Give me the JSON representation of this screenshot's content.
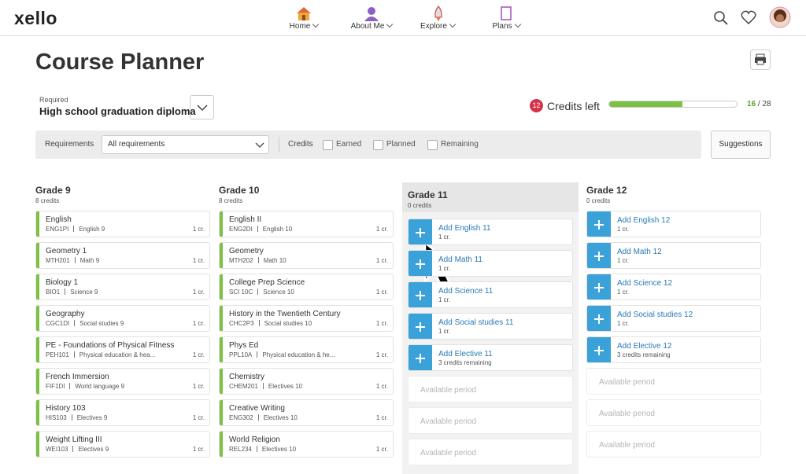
{
  "header": {
    "logo": "xello",
    "nav": [
      {
        "label": "Home"
      },
      {
        "label": "About Me"
      },
      {
        "label": "Explore"
      },
      {
        "label": "Plans"
      }
    ]
  },
  "page": {
    "title": "Course Planner",
    "required_label": "Required",
    "diploma": "High school graduation diploma",
    "credits_left_count": 12,
    "credits_left_text": "Credits left",
    "progress_earned": 16,
    "progress_separator": "/",
    "progress_total": 28
  },
  "filters": {
    "requirements_label": "Requirements",
    "requirements_value": "All requirements",
    "credits_label": "Credits",
    "checkboxes": [
      "Earned",
      "Planned",
      "Remaining"
    ],
    "suggestions": "Suggestions"
  },
  "grades": [
    {
      "name": "Grade 9",
      "credits": "8 credits",
      "courses": [
        {
          "name": "English",
          "code": "ENG1PI",
          "category": "English 9",
          "cr": "1 cr."
        },
        {
          "name": "Geometry 1",
          "code": "MTH201",
          "category": "Math 9",
          "cr": "1 cr."
        },
        {
          "name": "Biology 1",
          "code": "BIO1",
          "category": "Science 9",
          "cr": "1 cr."
        },
        {
          "name": "Geography",
          "code": "CGC1DI",
          "category": "Social studies 9",
          "cr": "1 cr."
        },
        {
          "name": "PE - Foundations of Physical Fitness",
          "code": "PEH101",
          "category": "Physical education & hea...",
          "cr": "1 cr."
        },
        {
          "name": "French Immersion",
          "code": "FIF1DI",
          "category": "World language 9",
          "cr": "1 cr."
        },
        {
          "name": "History 103",
          "code": "HIS103",
          "category": "Electives 9",
          "cr": "1 cr."
        },
        {
          "name": "Weight Lifting III",
          "code": "WEI103",
          "category": "Electives 9",
          "cr": "1 cr."
        }
      ]
    },
    {
      "name": "Grade 10",
      "credits": "8 credits",
      "courses": [
        {
          "name": "English II",
          "code": "ENG2DI",
          "category": "English 10",
          "cr": "1 cr."
        },
        {
          "name": "Geometry",
          "code": "MTH202",
          "category": "Math 10",
          "cr": "1 cr."
        },
        {
          "name": "College Prep Science",
          "code": "SCI 10C",
          "category": "Science 10",
          "cr": "1 cr."
        },
        {
          "name": "History in the Twentieth Century",
          "code": "CHC2P3",
          "category": "Social studies 10",
          "cr": "1 cr."
        },
        {
          "name": "Phys Ed",
          "code": "PPL10A",
          "category": "Physical education & he...",
          "cr": "1 cr."
        },
        {
          "name": "Chemistry",
          "code": "CHEM201",
          "category": "Electives 10",
          "cr": "1 cr."
        },
        {
          "name": "Creative Writing",
          "code": "ENG302",
          "category": "Electives 10",
          "cr": "1 cr."
        },
        {
          "name": "World Religion",
          "code": "REL234",
          "category": "Electives 10",
          "cr": "1 cr."
        }
      ]
    },
    {
      "name": "Grade 11",
      "credits": "0 credits",
      "slots": [
        {
          "label": "Add English 11",
          "sub": "1 cr."
        },
        {
          "label": "Add Math 11",
          "sub": "1 cr."
        },
        {
          "label": "Add Science 11",
          "sub": "1 cr."
        },
        {
          "label": "Add Social studies 11",
          "sub": "1 cr."
        },
        {
          "label": "Add Elective 11",
          "sub": "3 credits remaining"
        }
      ],
      "available": [
        "Available period",
        "Available period",
        "Available period"
      ]
    },
    {
      "name": "Grade 12",
      "credits": "0 credits",
      "slots": [
        {
          "label": "Add English 12",
          "sub": "1 cr."
        },
        {
          "label": "Add Math 12",
          "sub": "1 cr."
        },
        {
          "label": "Add Science 12",
          "sub": "1 cr."
        },
        {
          "label": "Add Social studies 12",
          "sub": "1 cr."
        },
        {
          "label": "Add Elective 12",
          "sub": "3 credits remaining"
        }
      ],
      "available": [
        "Available period",
        "Available period",
        "Available period"
      ]
    }
  ]
}
